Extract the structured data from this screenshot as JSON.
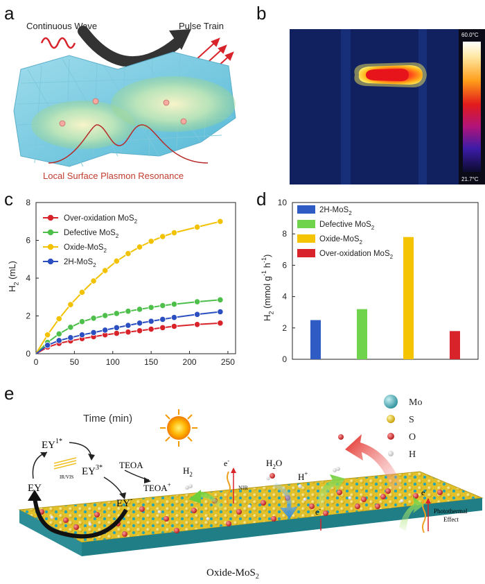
{
  "panels": {
    "a": {
      "letter": "a",
      "continuous_wave": "Continuous Wave",
      "pulse_train": "Pulse Train",
      "lspr": "Local Surface Plasmon Resonance"
    },
    "b": {
      "letter": "b",
      "temp_max": "60.0°C",
      "temp_min": "21.7°C"
    },
    "c": {
      "letter": "c"
    },
    "d": {
      "letter": "d"
    },
    "e": {
      "letter": "e",
      "time_label": "Time (min)",
      "ey": "EY",
      "ey1": "EY",
      "ey1_sup": "1*",
      "ey3": "EY",
      "ey3_sup": "3*",
      "ey_minus": "EY",
      "ey_minus_sup": "-",
      "irvis": "IR/VIS",
      "teoa": "TEOA",
      "teoa_plus": "TEOA",
      "teoa_plus_sup": "+",
      "h2": "H",
      "h2_sub": "2",
      "h2o": "H",
      "h2o_sub": "2",
      "h2o_o": "O",
      "hplus": "H",
      "hplus_sup": "+",
      "nir": "NIR",
      "electron": "e",
      "electron_sup": "-",
      "photothermal_1": "Photothermal",
      "photothermal_2": "Effect",
      "bottom_label": "Oxide-MoS",
      "bottom_sub": "2",
      "legend": [
        {
          "label": "Mo",
          "color": "#3aa6b0"
        },
        {
          "label": "S",
          "color": "#e8c21a"
        },
        {
          "label": "O",
          "color": "#d42a2a"
        },
        {
          "label": "H",
          "color": "#e8e8e8"
        }
      ]
    }
  },
  "chart_data": [
    {
      "type": "line",
      "panel": "c",
      "xlabel": "",
      "ylabel": "H2 (mL)",
      "xlim": [
        0,
        260
      ],
      "ylim": [
        0,
        8
      ],
      "xticks": [
        0,
        50,
        100,
        150,
        200,
        250
      ],
      "yticks": [
        0,
        2,
        4,
        6,
        8
      ],
      "x": [
        0,
        15,
        30,
        45,
        60,
        75,
        90,
        105,
        120,
        135,
        150,
        165,
        180,
        210,
        240
      ],
      "series": [
        {
          "name": "Over-oxidation MoS2",
          "color": "#d8232a",
          "values": [
            0,
            0.35,
            0.55,
            0.68,
            0.8,
            0.9,
            1.0,
            1.08,
            1.15,
            1.22,
            1.3,
            1.38,
            1.45,
            1.55,
            1.62
          ]
        },
        {
          "name": "Defective MoS2",
          "color": "#4dbf4a",
          "values": [
            0,
            0.6,
            1.05,
            1.4,
            1.7,
            1.88,
            2.02,
            2.13,
            2.25,
            2.35,
            2.45,
            2.55,
            2.62,
            2.75,
            2.85
          ]
        },
        {
          "name": "Oxide-MoS2",
          "color": "#f2c200",
          "values": [
            0,
            1.0,
            1.85,
            2.6,
            3.25,
            3.85,
            4.4,
            4.9,
            5.3,
            5.65,
            5.95,
            6.2,
            6.4,
            6.7,
            7.0
          ]
        },
        {
          "name": "2H-MoS2",
          "color": "#2b4fc1",
          "values": [
            0,
            0.45,
            0.7,
            0.85,
            1.0,
            1.12,
            1.25,
            1.38,
            1.5,
            1.62,
            1.72,
            1.82,
            1.92,
            2.08,
            2.22
          ]
        }
      ]
    },
    {
      "type": "bar",
      "panel": "d",
      "ylabel": "H2 (mmol g-1 h-1)",
      "ylim": [
        0,
        10
      ],
      "yticks": [
        0,
        2,
        4,
        6,
        8,
        10
      ],
      "categories": [
        "2H-MoS2",
        "Defective MoS2",
        "Oxide-MoS2",
        "Over-oxidation MoS2"
      ],
      "values": [
        2.5,
        3.2,
        7.8,
        1.8
      ],
      "colors": [
        "#2f5cc4",
        "#6fd34b",
        "#f5c400",
        "#d8232a"
      ]
    }
  ]
}
